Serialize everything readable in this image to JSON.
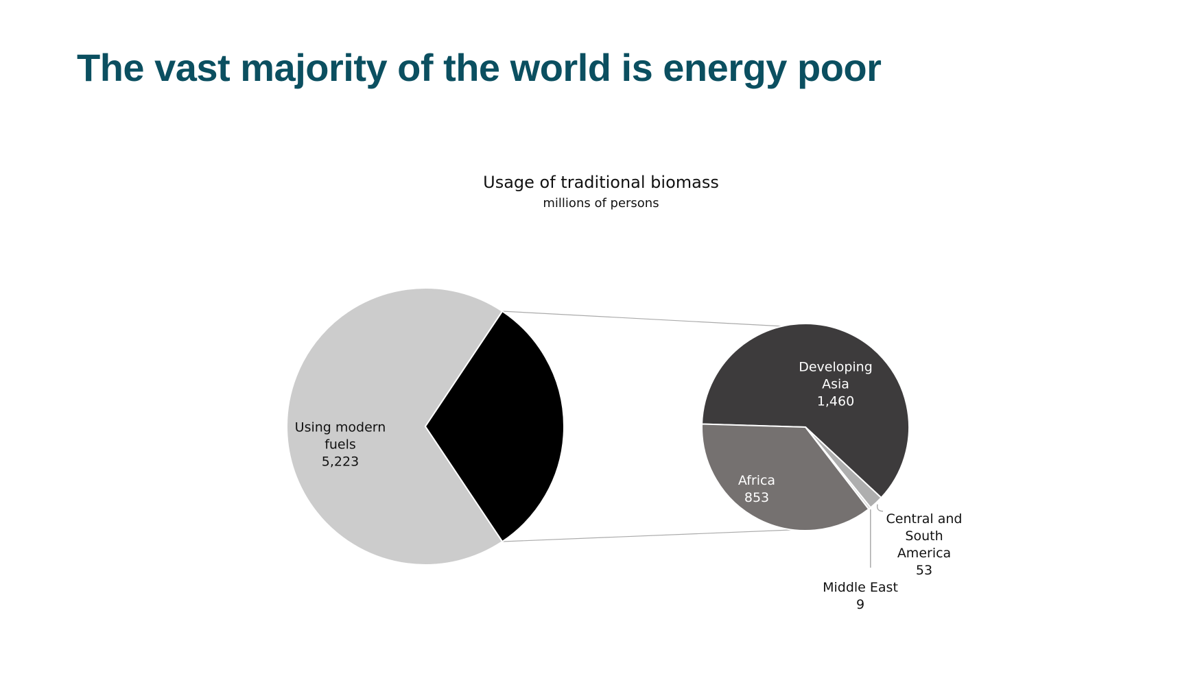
{
  "slide": {
    "title": "The vast majority of the world is energy poor"
  },
  "colors": {
    "title": "#0b4f60",
    "modern_fuels": "#cccccc",
    "traditional_biomass": "#000000",
    "developing_asia": "#3d3b3c",
    "africa": "#757170",
    "central_south_america": "#aeaeae",
    "middle_east": "#d9d9d9",
    "connector": "#aaaaaa"
  },
  "chart_data": {
    "type": "pie",
    "title": "Usage of traditional biomass",
    "subtitle": "millions of persons",
    "primary_pie": {
      "slices": [
        {
          "key": "modern",
          "label_lines": [
            "Using modern",
            "fuels"
          ],
          "value": 5223,
          "value_label": "5,223",
          "color_key": "modern_fuels"
        },
        {
          "key": "biomass",
          "label_lines": [],
          "value": 2375,
          "value_label": "",
          "color_key": "traditional_biomass",
          "exploded": true
        }
      ]
    },
    "secondary_pie": {
      "breakdown_of": "biomass",
      "slices": [
        {
          "key": "asia",
          "label_lines": [
            "Developing",
            "Asia"
          ],
          "value": 1460,
          "value_label": "1,460",
          "color_key": "developing_asia"
        },
        {
          "key": "csa",
          "label_lines": [
            "Central and",
            "South",
            "America"
          ],
          "value": 53,
          "value_label": "53",
          "color_key": "central_south_america"
        },
        {
          "key": "me",
          "label_lines": [
            "Middle East"
          ],
          "value": 9,
          "value_label": "9",
          "color_key": "middle_east"
        },
        {
          "key": "africa",
          "label_lines": [
            "Africa"
          ],
          "value": 853,
          "value_label": "853",
          "color_key": "africa"
        }
      ]
    }
  }
}
